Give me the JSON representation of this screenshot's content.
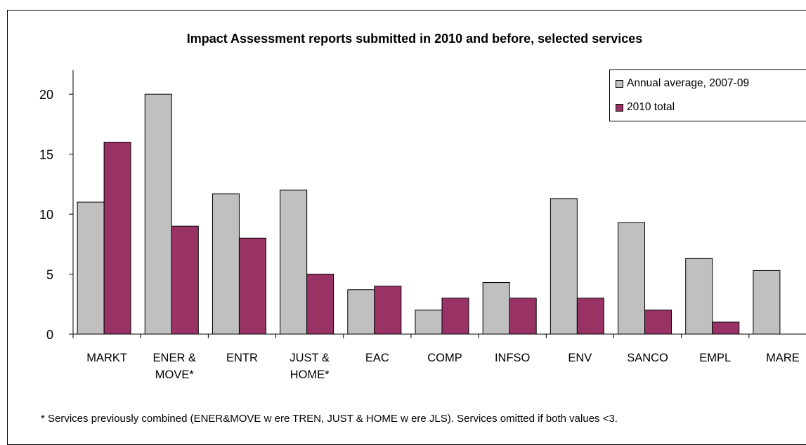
{
  "chart_data": {
    "type": "bar",
    "title": "Impact Assessment reports submitted in 2010 and before, selected services",
    "categories": [
      [
        "MARKT"
      ],
      [
        "ENER &",
        "MOVE*"
      ],
      [
        "ENTR"
      ],
      [
        "JUST &",
        "HOME*"
      ],
      [
        "EAC"
      ],
      [
        "COMP"
      ],
      [
        "INFSO"
      ],
      [
        "ENV"
      ],
      [
        "SANCO"
      ],
      [
        "EMPL"
      ],
      [
        "MARE"
      ]
    ],
    "series": [
      {
        "name": "Annual average, 2007-09",
        "color": "#c0c0c0",
        "values": [
          11,
          20,
          11.7,
          12,
          3.7,
          2,
          4.3,
          11.3,
          9.3,
          6.3,
          5.3
        ]
      },
      {
        "name": "2010 total",
        "color": "#993366",
        "values": [
          16,
          9,
          8,
          5,
          4,
          3,
          3,
          3,
          2,
          1,
          0
        ]
      }
    ],
    "y_ticks": [
      "0",
      "5",
      "10",
      "15",
      "20"
    ],
    "ylim": [
      0,
      22
    ],
    "legend_position": "top-right",
    "grid": false,
    "footnote": "* Services previously combined (ENER&MOVE w ere TREN, JUST & HOME w ere JLS). Services omitted if both values <3."
  }
}
